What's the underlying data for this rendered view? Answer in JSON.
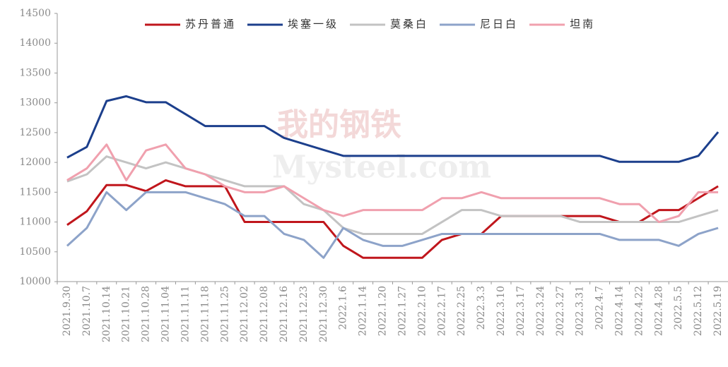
{
  "chart_data": {
    "type": "line",
    "watermark": [
      "我的钢铁",
      "Mysteel.com"
    ],
    "categories": [
      "2021.9.30",
      "2021.10.7",
      "2021.10.14",
      "2021.10.21",
      "2021.10.28",
      "2021.11.04",
      "2021.11.11",
      "2021.11.18",
      "2021.11.25",
      "2021.12.02",
      "2021.12.08",
      "2021.12.16",
      "2021.12.23",
      "2021.12.30",
      "2022.1.6",
      "2022.1.14",
      "2022.1.20",
      "2022.1.27",
      "2022.2.10",
      "2022.2.17",
      "2022.2.25",
      "2022.3.3",
      "2022.3.10",
      "2022.3.17",
      "2022.3.24",
      "2022.3.27",
      "2022.3.31",
      "2022.4.7",
      "2022.4.14",
      "2022.4.22",
      "2022.4.28",
      "2022.5.5",
      "2022.5.12",
      "2022.5.19"
    ],
    "series": [
      {
        "name": "苏丹普通",
        "color": "#c0161c",
        "values": [
          10950,
          11180,
          11620,
          11620,
          11520,
          11700,
          11600,
          11600,
          11600,
          11000,
          11000,
          11000,
          11000,
          11000,
          10600,
          10400,
          10400,
          10400,
          10400,
          10700,
          10800,
          10800,
          11100,
          11100,
          11100,
          11100,
          11100,
          11100,
          11000,
          11000,
          11200,
          11200,
          11400,
          11600
        ]
      },
      {
        "name": "埃塞一级",
        "color": "#1c3f8c",
        "values": [
          12080,
          12260,
          13030,
          13110,
          13010,
          13010,
          12810,
          12610,
          12610,
          12610,
          12610,
          12410,
          12310,
          12210,
          12110,
          12110,
          12110,
          12110,
          12110,
          12110,
          12110,
          12110,
          12110,
          12110,
          12110,
          12110,
          12110,
          12110,
          12010,
          12010,
          12010,
          12010,
          12110,
          12510
        ]
      },
      {
        "name": "莫桑白",
        "color": "#c3c3c3",
        "values": [
          11680,
          11800,
          12100,
          12000,
          11900,
          12000,
          11900,
          11800,
          11700,
          11600,
          11600,
          11600,
          11300,
          11200,
          10900,
          10800,
          10800,
          10800,
          10800,
          11000,
          11200,
          11200,
          11100,
          11100,
          11100,
          11100,
          11000,
          11000,
          11000,
          11000,
          11000,
          11000,
          11100,
          11200
        ]
      },
      {
        "name": "尼日白",
        "color": "#8da3c9",
        "values": [
          10600,
          10900,
          11500,
          11200,
          11500,
          11500,
          11500,
          11400,
          11300,
          11100,
          11100,
          10800,
          10700,
          10400,
          10900,
          10700,
          10600,
          10600,
          10700,
          10800,
          10800,
          10800,
          10800,
          10800,
          10800,
          10800,
          10800,
          10800,
          10700,
          10700,
          10700,
          10600,
          10800,
          10900
        ]
      },
      {
        "name": "坦南",
        "color": "#f0a0ae",
        "values": [
          11700,
          11900,
          12300,
          11700,
          12200,
          12300,
          11900,
          11800,
          11600,
          11500,
          11500,
          11600,
          11400,
          11200,
          11100,
          11200,
          11200,
          11200,
          11200,
          11400,
          11400,
          11500,
          11400,
          11400,
          11400,
          11400,
          11400,
          11400,
          11300,
          11300,
          11000,
          11100,
          11500,
          11500
        ]
      }
    ],
    "ylim": [
      10000,
      14500
    ],
    "yticks": [
      10000,
      10500,
      11000,
      11500,
      12000,
      12500,
      13000,
      13500,
      14000,
      14500
    ],
    "legend": "top"
  }
}
